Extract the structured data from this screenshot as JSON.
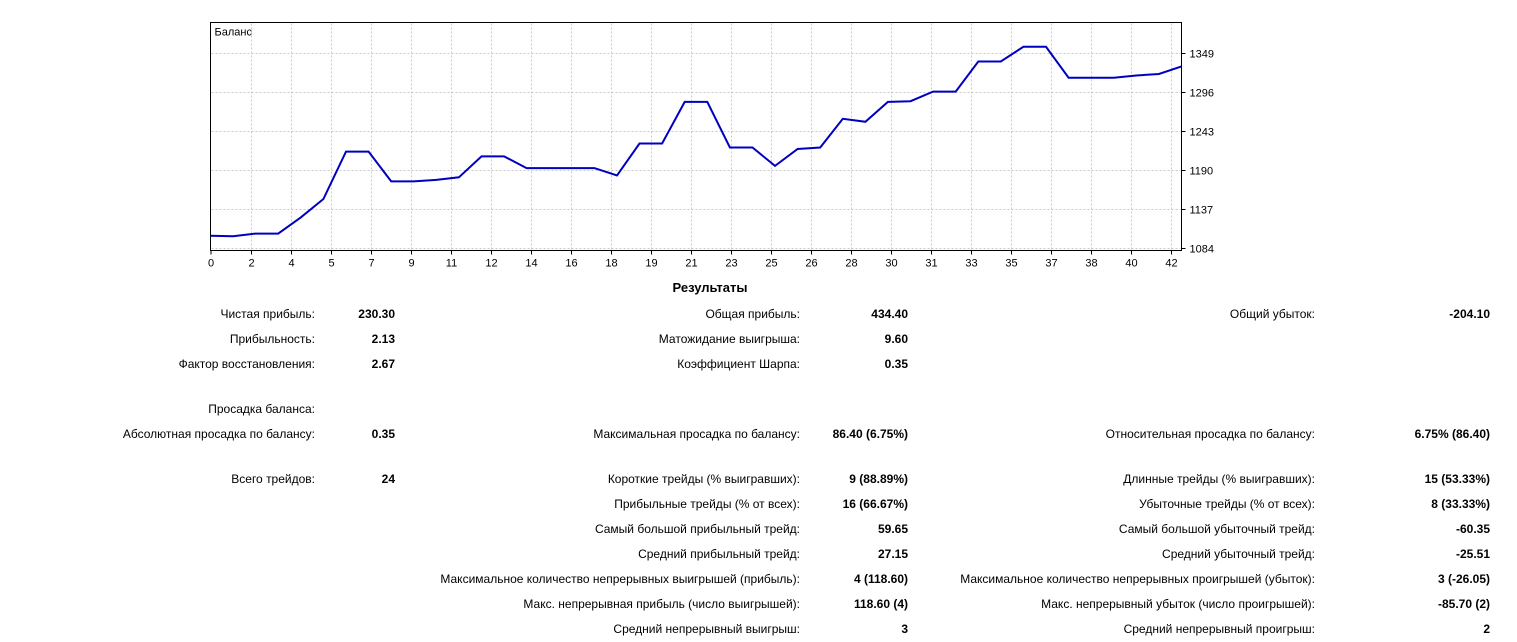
{
  "results_table": {
    "title": "Результаты",
    "sections": [
      {
        "rows": [
          [
            "Чистая прибыль:",
            "230.30",
            "Общая прибыль:",
            "434.40",
            "Общий убыток:",
            "-204.10"
          ],
          [
            "Прибыльность:",
            "2.13",
            "Матожидание выигрыша:",
            "9.60",
            "",
            ""
          ],
          [
            "Фактор восстановления:",
            "2.67",
            "Коэффициент Шарпа:",
            "0.35",
            "",
            ""
          ]
        ]
      },
      {
        "rows": [
          [
            "Просадка баланса:",
            "",
            "",
            "",
            "",
            ""
          ],
          [
            "Абсолютная просадка по балансу:",
            "0.35",
            "Максимальная просадка по балансу:",
            "86.40 (6.75%)",
            "Относительная просадка по балансу:",
            "6.75% (86.40)"
          ]
        ]
      },
      {
        "rows": [
          [
            "Всего трейдов:",
            "24",
            "Короткие трейды (% выигравших):",
            "9 (88.89%)",
            "Длинные трейды (% выигравших):",
            "15 (53.33%)"
          ],
          [
            "",
            "",
            "Прибыльные трейды (% от всех):",
            "16 (66.67%)",
            "Убыточные трейды (% от всех):",
            "8 (33.33%)"
          ],
          [
            "",
            "",
            "Самый большой прибыльный трейд:",
            "59.65",
            "Самый большой убыточный трейд:",
            "-60.35"
          ],
          [
            "",
            "",
            "Средний прибыльный трейд:",
            "27.15",
            "Средний убыточный трейд:",
            "-25.51"
          ],
          [
            "",
            "",
            "Максимальное количество непрерывных выигрышей (прибыль):",
            "4 (118.60)",
            "Максимальное количество непрерывных проигрышей (убыток):",
            "3 (-26.05)"
          ],
          [
            "",
            "",
            "Макс. непрерывная прибыль (число выигрышей):",
            "118.60 (4)",
            "Макс. непрерывный убыток (число проигрышей):",
            "-85.70 (2)"
          ],
          [
            "",
            "",
            "Средний непрерывный выигрыш:",
            "3",
            "Средний непрерывный проигрыш:",
            "2"
          ]
        ]
      }
    ]
  },
  "chart_data": {
    "type": "line",
    "title": "Баланс",
    "series": [
      {
        "name": "Баланс",
        "values": [
          1100.0,
          1099.5,
          1103.0,
          1103.0,
          1125.0,
          1150.0,
          1214.5,
          1214.5,
          1174.0,
          1174.0,
          1176.0,
          1179.5,
          1208.0,
          1208.0,
          1192.0,
          1192.0,
          1192.0,
          1192.0,
          1182.0,
          1225.5,
          1225.5,
          1282.0,
          1282.0,
          1220.0,
          1220.0,
          1195.0,
          1218.0,
          1220.0,
          1259.0,
          1255.0,
          1282.0,
          1283.0,
          1296.0,
          1296.0,
          1337.0,
          1337.0,
          1357.0,
          1357.0,
          1315.0,
          1315.0,
          1315.0,
          1318.0,
          1320.0,
          1330.3
        ]
      }
    ],
    "x_start_trade": 0,
    "x_tick_labels": [
      "0",
      "2",
      "4",
      "5",
      "7",
      "9",
      "11",
      "12",
      "14",
      "16",
      "18",
      "19",
      "21",
      "23",
      "25",
      "26",
      "28",
      "30",
      "31",
      "33",
      "35",
      "37",
      "38",
      "40",
      "42"
    ],
    "y_ticks": [
      1084,
      1137,
      1190,
      1243,
      1296,
      1349
    ],
    "ylim": [
      1080,
      1390
    ],
    "grid": "dashed",
    "legend_position": "label-top-left",
    "line_color": "#0000C0",
    "grid_color": "#C9C9C9",
    "axis_color": "#000000",
    "background_color": "#FFFFFF"
  }
}
